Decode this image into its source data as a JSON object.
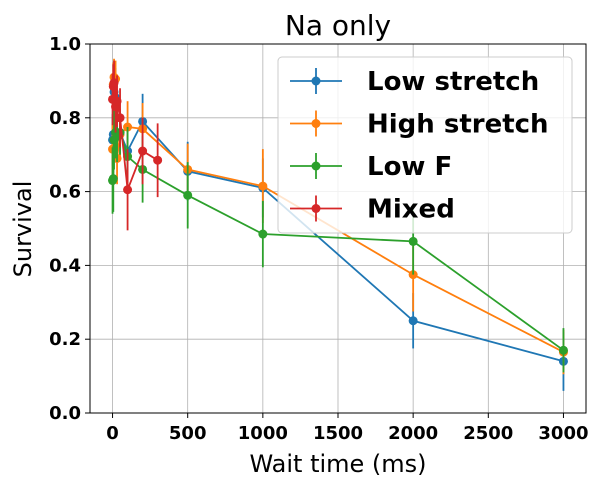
{
  "chart_data": {
    "type": "line",
    "title": "Na only",
    "xlabel": "Wait time (ms)",
    "ylabel": "Survival",
    "xlim": [
      -150,
      3150
    ],
    "ylim": [
      0.0,
      1.0
    ],
    "xticks": [
      "0",
      "500",
      "1000",
      "1500",
      "2000",
      "2500",
      "3000"
    ],
    "xtick_values": [
      0,
      500,
      1000,
      1500,
      2000,
      2500,
      3000
    ],
    "yticks": [
      "0.0",
      "0.2",
      "0.4",
      "0.6",
      "0.8",
      "1.0"
    ],
    "ytick_values": [
      0.0,
      0.2,
      0.4,
      0.6,
      0.8,
      1.0
    ],
    "grid": true,
    "legend_position": "top-right",
    "series": [
      {
        "name": "Low stretch",
        "color": "#1f77b4",
        "x": [
          0,
          5,
          10,
          20,
          30,
          50,
          100,
          200,
          500,
          1000,
          2000,
          3000
        ],
        "y": [
          0.74,
          0.755,
          0.87,
          0.855,
          0.75,
          0.76,
          0.71,
          0.79,
          0.655,
          0.61,
          0.25,
          0.14
        ],
        "err": [
          0.07,
          0.07,
          0.08,
          0.08,
          0.07,
          0.06,
          0.07,
          0.075,
          0.08,
          0.08,
          0.075,
          0.08
        ]
      },
      {
        "name": "High stretch",
        "color": "#ff7f0e",
        "x": [
          0,
          5,
          10,
          20,
          30,
          50,
          100,
          200,
          500,
          1000,
          2000,
          3000
        ],
        "y": [
          0.715,
          0.89,
          0.91,
          0.905,
          0.69,
          0.755,
          0.775,
          0.77,
          0.66,
          0.615,
          0.375,
          0.165
        ],
        "err": [
          0.07,
          0.06,
          0.05,
          0.05,
          0.07,
          0.07,
          0.07,
          0.07,
          0.07,
          0.1,
          0.1,
          0.06
        ]
      },
      {
        "name": "Low F",
        "color": "#2ca02c",
        "x": [
          0,
          5,
          10,
          20,
          30,
          50,
          100,
          200,
          500,
          1000,
          2000,
          3000
        ],
        "y": [
          0.63,
          0.635,
          0.74,
          0.76,
          0.75,
          0.76,
          0.695,
          0.66,
          0.59,
          0.485,
          0.465,
          0.17
        ],
        "err": [
          0.09,
          0.09,
          0.08,
          0.07,
          0.07,
          0.06,
          0.08,
          0.09,
          0.09,
          0.09,
          0.09,
          0.06
        ]
      },
      {
        "name": "Mixed",
        "color": "#d62728",
        "x": [
          0,
          5,
          10,
          20,
          30,
          50,
          100,
          200,
          300
        ],
        "y": [
          0.85,
          0.885,
          0.895,
          0.83,
          0.845,
          0.8,
          0.605,
          0.71,
          0.685
        ],
        "err": [
          0.07,
          0.06,
          0.06,
          0.07,
          0.07,
          0.08,
          0.11,
          0.09,
          0.1
        ]
      }
    ]
  }
}
